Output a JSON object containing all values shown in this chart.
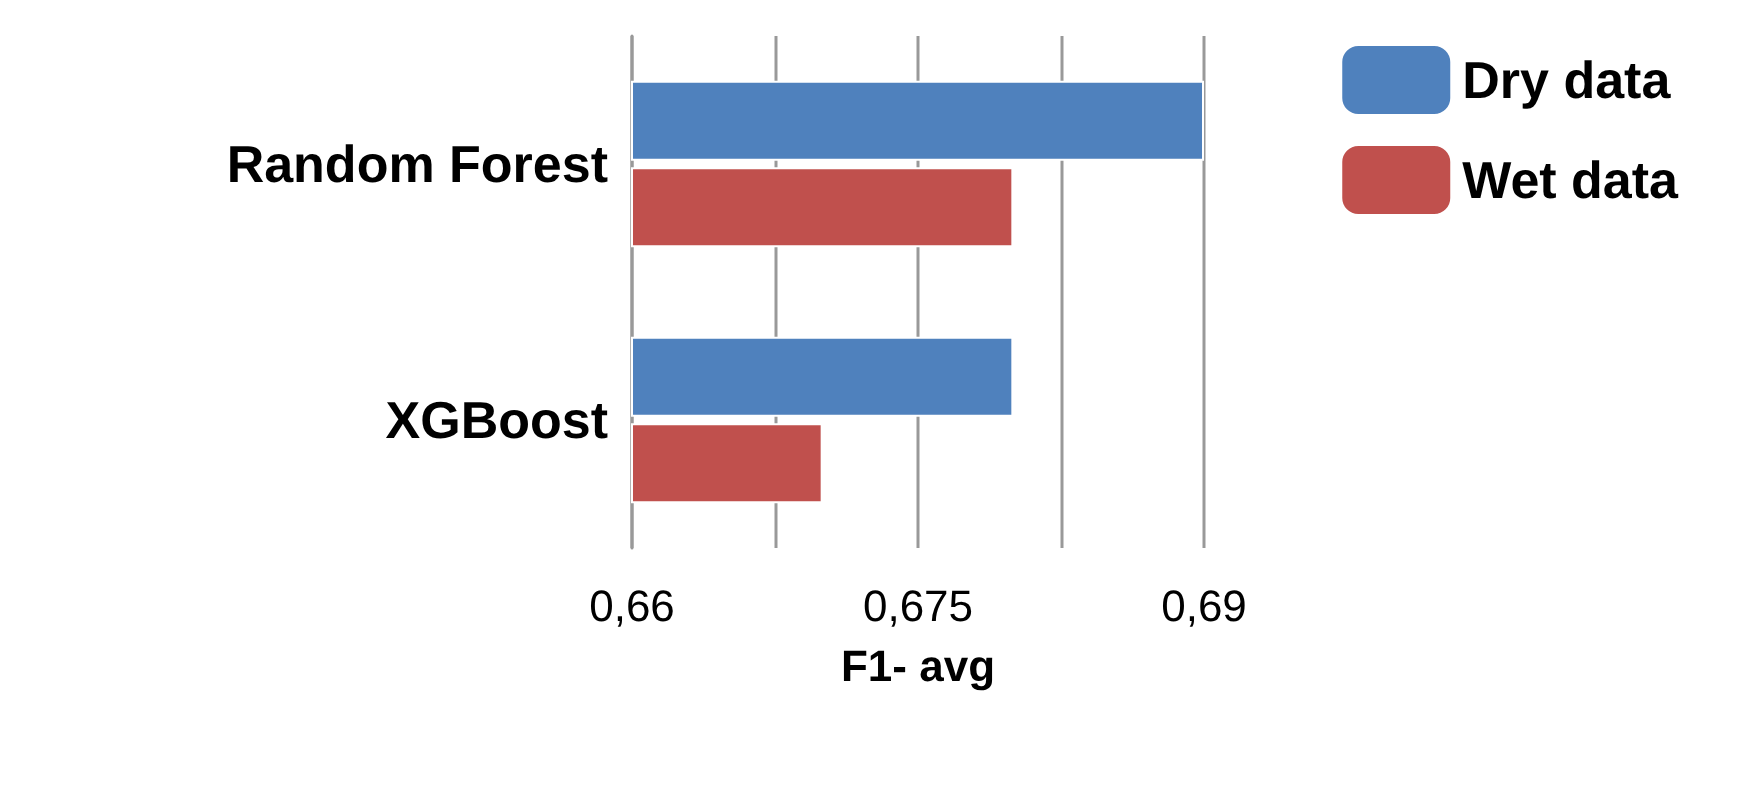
{
  "chart_data": {
    "type": "bar",
    "orientation": "horizontal",
    "xlabel": "F1- avg",
    "categories": [
      "Random Forest",
      "XGBoost"
    ],
    "series": [
      {
        "name": "Dry data",
        "color": "#4f81bd",
        "values": [
          0.69,
          0.68
        ]
      },
      {
        "name": "Wet data",
        "color": "#c0504d",
        "values": [
          0.68,
          0.67
        ]
      }
    ],
    "xlim": [
      0.66,
      0.69
    ],
    "xticks": [
      {
        "value": 0.66,
        "label": "0,66"
      },
      {
        "value": 0.6675,
        "label": null
      },
      {
        "value": 0.675,
        "label": "0,675"
      },
      {
        "value": 0.6825,
        "label": null
      },
      {
        "value": 0.69,
        "label": "0,69"
      }
    ],
    "grid": "x",
    "legend": "top right"
  }
}
